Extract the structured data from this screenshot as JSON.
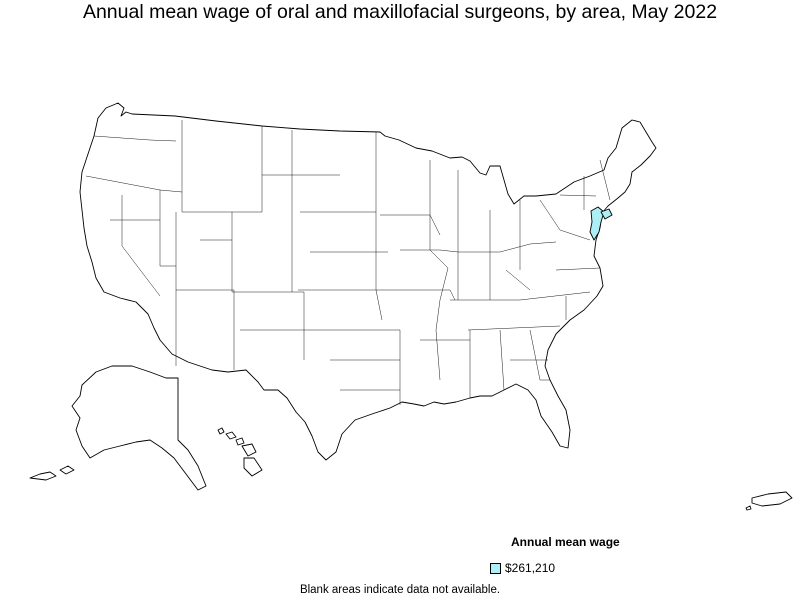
{
  "title": "Annual mean wage of oral and maxillofacial surgeons, by area, May 2022",
  "legend": {
    "title": "Annual mean wage",
    "items": [
      {
        "label": "$261,210",
        "color": "#aeeef5"
      }
    ]
  },
  "footnote": "Blank areas indicate data not available.",
  "map": {
    "default_fill": "#ffffff",
    "highlighted_areas": [
      {
        "area": "New York-New Jersey metropolitan area",
        "value": "$261,210"
      }
    ]
  }
}
